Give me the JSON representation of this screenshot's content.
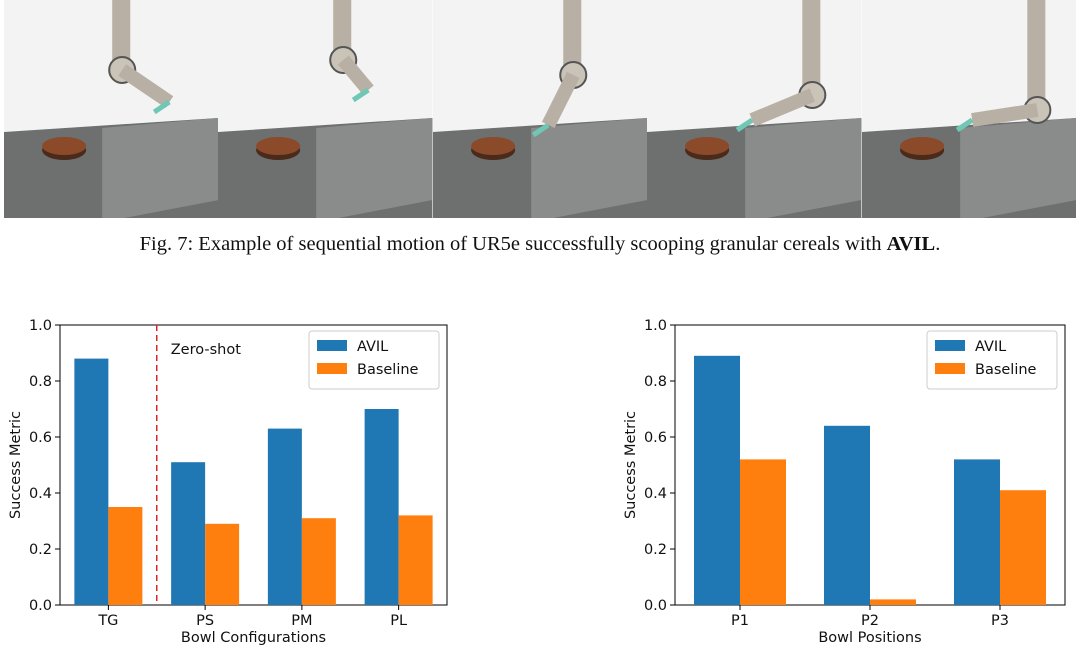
{
  "figure7": {
    "caption_prefix": "Fig. 7: Example of sequential motion of UR5e successfully scooping granular cereals with ",
    "caption_bold": "AVIL",
    "caption_suffix": ".",
    "frame_count": 5
  },
  "colors": {
    "avil": "#1f77b4",
    "baseline": "#ff7f0e",
    "divider": "#d62728"
  },
  "chart_data": [
    {
      "type": "bar",
      "categories": [
        "TG",
        "PS",
        "PM",
        "PL"
      ],
      "series": [
        {
          "name": "AVIL",
          "values": [
            0.88,
            0.51,
            0.63,
            0.7
          ]
        },
        {
          "name": "Baseline",
          "values": [
            0.35,
            0.29,
            0.31,
            0.32
          ]
        }
      ],
      "xlabel": "Bowl Configurations",
      "ylabel": "Success Metric",
      "ylim": [
        0,
        1.0
      ],
      "yticks": [
        "0.0",
        "0.2",
        "0.4",
        "0.6",
        "0.8",
        "1.0"
      ],
      "annotation": "Zero-shot",
      "divider_after_category": "TG",
      "legend": "top-right"
    },
    {
      "type": "bar",
      "categories": [
        "P1",
        "P2",
        "P3"
      ],
      "series": [
        {
          "name": "AVIL",
          "values": [
            0.89,
            0.64,
            0.52
          ]
        },
        {
          "name": "Baseline",
          "values": [
            0.52,
            0.02,
            0.41
          ]
        }
      ],
      "xlabel": "Bowl Positions",
      "ylabel": "Success Metric",
      "ylim": [
        0,
        1.0
      ],
      "yticks": [
        "0.0",
        "0.2",
        "0.4",
        "0.6",
        "0.8",
        "1.0"
      ],
      "legend": "top-right"
    }
  ]
}
